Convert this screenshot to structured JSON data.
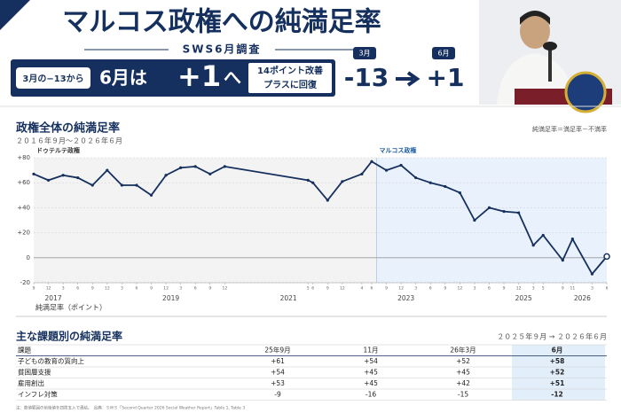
{
  "header": {
    "title": "マルコス政権への純満足率",
    "subtitle": "SWS6月調査",
    "badge": "3月の−13から",
    "lead": "6月は",
    "big": "+1",
    "tail": "へ",
    "box_lines": [
      "14ポイント改善",
      "プラスに回復"
    ],
    "compare": [
      {
        "label": "3月",
        "value": "-13"
      },
      {
        "label": "6月",
        "value": "+1"
      }
    ]
  },
  "chart_data": {
    "type": "line",
    "title": "政権全体の純満足率",
    "subtitle": "２０１６年９月～２０２６年６月",
    "note": "純満足率＝満足率－不満率",
    "y_label": "純満足率（ポイント）",
    "x": [
      "2016-09",
      "2016-12",
      "2017-03",
      "2017-06",
      "2017-09",
      "2017-12",
      "2018-03",
      "2018-06",
      "2018-09",
      "2018-12",
      "2019-03",
      "2019-06",
      "2019-09",
      "2019-12",
      "2021-05",
      "2021-06",
      "2021-09",
      "2021-12",
      "2022-04",
      "2022-06",
      "2022-09",
      "2022-12",
      "2023-03",
      "2023-06",
      "2023-09",
      "2023-12",
      "2024-03",
      "2024-06",
      "2024-09",
      "2024-12",
      "2025-03",
      "2025-05",
      "2025-09",
      "2025-11",
      "2026-03",
      "2026-06"
    ],
    "series": [
      {
        "name": "純満足率",
        "color": "#15305e",
        "values": [
          67,
          62,
          66,
          64,
          58,
          70,
          58,
          58,
          50,
          66,
          72,
          73,
          67,
          73,
          62,
          60,
          46,
          61,
          67,
          77,
          70,
          74,
          64,
          60,
          57,
          52,
          30,
          40,
          37,
          36,
          10,
          18,
          -2,
          15,
          -13,
          1
        ]
      }
    ],
    "xlim": [
      "2016-09",
      "2026-06"
    ],
    "xticks": [
      {
        "value": "2016-09",
        "label": "9"
      },
      {
        "value": "2016-12",
        "label": "12"
      },
      {
        "value": "2017-03",
        "label": "3"
      },
      {
        "value": "2017-06",
        "label": "6"
      },
      {
        "value": "2017-09",
        "label": "9"
      },
      {
        "value": "2017-12",
        "label": "12"
      },
      {
        "value": "2018-03",
        "label": "3"
      },
      {
        "value": "2018-06",
        "label": "6"
      },
      {
        "value": "2018-09",
        "label": "9"
      },
      {
        "value": "2018-12",
        "label": "12"
      },
      {
        "value": "2019-03",
        "label": "3"
      },
      {
        "value": "2019-06",
        "label": "6"
      },
      {
        "value": "2019-09",
        "label": "9"
      },
      {
        "value": "2019-12",
        "label": "12"
      },
      {
        "value": "2021-05",
        "label": "5"
      },
      {
        "value": "2021-06",
        "label": "6"
      },
      {
        "value": "2021-09",
        "label": "9"
      },
      {
        "value": "2021-12",
        "label": "12"
      },
      {
        "value": "2022-04",
        "label": "4"
      },
      {
        "value": "2022-06",
        "label": "6"
      },
      {
        "value": "2022-09",
        "label": "9"
      },
      {
        "value": "2022-12",
        "label": "12"
      },
      {
        "value": "2023-03",
        "label": "3"
      },
      {
        "value": "2023-06",
        "label": "6"
      },
      {
        "value": "2023-09",
        "label": "9"
      },
      {
        "value": "2023-12",
        "label": "12"
      },
      {
        "value": "2024-03",
        "label": "3"
      },
      {
        "value": "2024-06",
        "label": "6"
      },
      {
        "value": "2024-09",
        "label": "9"
      },
      {
        "value": "2024-12",
        "label": "12"
      },
      {
        "value": "2025-03",
        "label": "3"
      },
      {
        "value": "2025-05",
        "label": "5"
      },
      {
        "value": "2025-09",
        "label": "9"
      },
      {
        "value": "2025-11",
        "label": "11"
      },
      {
        "value": "2026-03",
        "label": "3"
      },
      {
        "value": "2026-06",
        "label": "6"
      }
    ],
    "year_labels": [
      "2017",
      "2019",
      "2021",
      "2023",
      "2025",
      "2026"
    ],
    "ylim": [
      -20,
      80
    ],
    "yticks": [
      -20,
      0,
      {
        "value": 20,
        "label": "+20"
      },
      {
        "value": 40,
        "label": "+40"
      },
      {
        "value": 60,
        "label": "+60"
      },
      {
        "value": 80,
        "label": "+80"
      }
    ],
    "grid": true,
    "regions": [
      {
        "label": "ドゥテルテ政権",
        "start": "2016-09",
        "end": "2022-07",
        "fill": "#f3f3f3",
        "color": "#333333"
      },
      {
        "label": "マルコス政権",
        "start": "2022-07",
        "end": "2026-06",
        "fill": "#e9f1fc",
        "color": "#1f5fa8"
      }
    ]
  },
  "table": {
    "title": "主な課題別の純満足率",
    "range": "２０２５年９月 → ２０２６年６月",
    "header": [
      "課題",
      "25年9月",
      "11月",
      "26年3月",
      "6月"
    ],
    "rows": [
      [
        "子どもの教育の質向上",
        "+61",
        "+54",
        "+52",
        "+58"
      ],
      [
        "貧困層支援",
        "+54",
        "+45",
        "+45",
        "+52"
      ],
      [
        "雇用創出",
        "+53",
        "+45",
        "+42",
        "+51"
      ],
      [
        "インフレ対策",
        "-9",
        "-16",
        "-15",
        "-12"
      ]
    ]
  },
  "footnote": "注：数値範囲の前後値を四捨五入で連結。　出典：ＳＷＳ「Second Quarter 2026 Social Weather Report」Table 1, Table 3"
}
